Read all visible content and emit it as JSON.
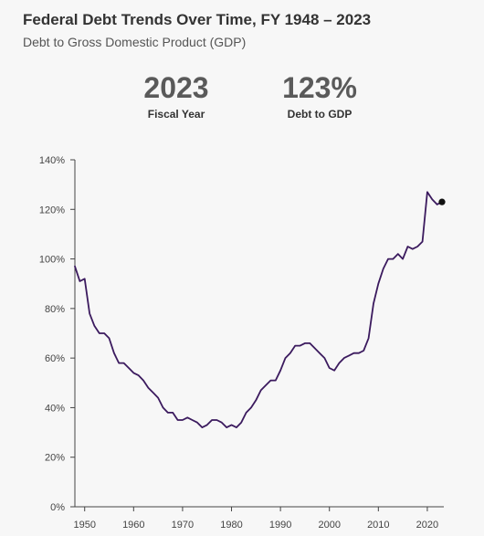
{
  "header": {
    "title": "Federal Debt Trends Over Time, FY 1948 – 2023",
    "subtitle": "Debt to Gross Domestic Product (GDP)"
  },
  "stats": {
    "year_value": "2023",
    "year_label": "Fiscal Year",
    "debt_value": "123%",
    "debt_label": "Debt to GDP"
  },
  "colors": {
    "line": "#3b1a5e",
    "marker": "#111111",
    "axis": "#444444"
  },
  "chart_data": {
    "type": "line",
    "title": "Federal Debt Trends Over Time, FY 1948 – 2023",
    "subtitle": "Debt to Gross Domestic Product (GDP)",
    "xlabel": "",
    "ylabel": "",
    "xlim": [
      1948,
      2023
    ],
    "ylim": [
      0,
      140
    ],
    "grid": false,
    "x_ticks": [
      1950,
      1960,
      1970,
      1980,
      1990,
      2000,
      2010,
      2020
    ],
    "x_tick_labels": [
      "1950",
      "1960",
      "1970",
      "1980",
      "1990",
      "2000",
      "2010",
      "2020"
    ],
    "y_ticks": [
      0,
      20,
      40,
      60,
      80,
      100,
      120,
      140
    ],
    "y_tick_labels": [
      "0%",
      "20%",
      "40%",
      "60%",
      "80%",
      "100%",
      "120%",
      "140%"
    ],
    "highlight": {
      "x": 2023,
      "y": 123
    },
    "series": [
      {
        "x": [
          1948,
          1949,
          1950,
          1951,
          1952,
          1953,
          1954,
          1955,
          1956,
          1957,
          1958,
          1959,
          1960,
          1961,
          1962,
          1963,
          1964,
          1965,
          1966,
          1967,
          1968,
          1969,
          1970,
          1971,
          1972,
          1973,
          1974,
          1975,
          1976,
          1977,
          1978,
          1979,
          1980,
          1981,
          1982,
          1983,
          1984,
          1985,
          1986,
          1987,
          1988,
          1989,
          1990,
          1991,
          1992,
          1993,
          1994,
          1995,
          1996,
          1997,
          1998,
          1999,
          2000,
          2001,
          2002,
          2003,
          2004,
          2005,
          2006,
          2007,
          2008,
          2009,
          2010,
          2011,
          2012,
          2013,
          2014,
          2015,
          2016,
          2017,
          2018,
          2019,
          2020,
          2021,
          2022,
          2023
        ],
        "values": [
          97,
          91,
          92,
          78,
          73,
          70,
          70,
          68,
          62,
          58,
          58,
          56,
          54,
          53,
          51,
          48,
          46,
          44,
          40,
          38,
          38,
          35,
          35,
          36,
          35,
          34,
          32,
          33,
          35,
          35,
          34,
          32,
          33,
          32,
          34,
          38,
          40,
          43,
          47,
          49,
          51,
          51,
          55,
          60,
          62,
          65,
          65,
          66,
          66,
          64,
          62,
          60,
          56,
          55,
          58,
          60,
          61,
          62,
          62,
          63,
          68,
          82,
          90,
          96,
          100,
          100,
          102,
          100,
          105,
          104,
          105,
          107,
          127,
          124,
          122,
          123
        ]
      }
    ]
  }
}
